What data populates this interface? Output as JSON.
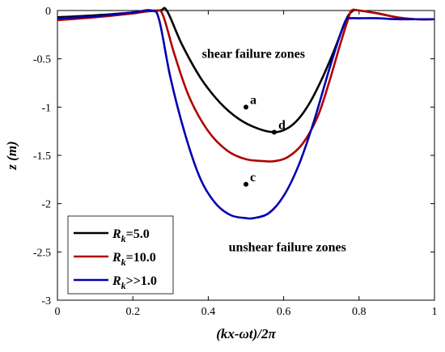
{
  "chart_data": {
    "type": "line",
    "xlabel": "(kx-ωt)/2π",
    "ylabel": "z (m)",
    "xlim": [
      0,
      1
    ],
    "ylim": [
      -3,
      0
    ],
    "xticks": [
      0,
      0.2,
      0.4,
      0.6,
      0.8,
      1
    ],
    "xtick_labels": [
      "0",
      "0.2",
      "0.4",
      "0.6",
      "0.8",
      "1"
    ],
    "yticks": [
      0,
      -0.5,
      -1,
      -1.5,
      -2,
      -2.5,
      -3
    ],
    "ytick_labels": [
      "0",
      "-0.5",
      "-1",
      "-1.5",
      "-2",
      "-2.5",
      "-3"
    ],
    "grid": false,
    "legend_position": "bottom-left",
    "series": [
      {
        "name": "Rk=5.0",
        "legend_main": "R",
        "legend_sub": "k",
        "legend_rest": "=5.0",
        "color": "#000000",
        "x": [
          0,
          0.1,
          0.2,
          0.27,
          0.29,
          0.33,
          0.38,
          0.43,
          0.48,
          0.53,
          0.575,
          0.61,
          0.64,
          0.67,
          0.7,
          0.73,
          0.755,
          0.77,
          0.785,
          0.8,
          0.85,
          0.9,
          0.95,
          1
        ],
        "y": [
          -0.07,
          -0.05,
          -0.02,
          0,
          0,
          -0.35,
          -0.7,
          -0.95,
          -1.12,
          -1.22,
          -1.26,
          -1.22,
          -1.12,
          -0.95,
          -0.72,
          -0.45,
          -0.2,
          -0.06,
          0,
          0,
          -0.03,
          -0.07,
          -0.09,
          -0.09
        ]
      },
      {
        "name": "Rk=10.0",
        "legend_main": "R",
        "legend_sub": "k",
        "legend_rest": "=10.0",
        "color": "#b00000",
        "x": [
          0,
          0.1,
          0.2,
          0.26,
          0.28,
          0.31,
          0.35,
          0.4,
          0.45,
          0.5,
          0.55,
          0.575,
          0.61,
          0.65,
          0.69,
          0.72,
          0.75,
          0.77,
          0.78,
          0.8,
          0.85,
          0.9,
          0.95,
          1
        ],
        "y": [
          -0.1,
          -0.07,
          -0.03,
          0,
          -0.05,
          -0.45,
          -0.9,
          -1.25,
          -1.45,
          -1.54,
          -1.56,
          -1.56,
          -1.52,
          -1.38,
          -1.1,
          -0.75,
          -0.35,
          -0.1,
          0,
          0,
          -0.03,
          -0.07,
          -0.09,
          -0.09
        ]
      },
      {
        "name": "Rk>>1.0",
        "legend_main": "R",
        "legend_sub": "k",
        "legend_rest": ">>1.0",
        "color": "#0000b0",
        "x": [
          0,
          0.1,
          0.2,
          0.25,
          0.27,
          0.3,
          0.34,
          0.38,
          0.42,
          0.46,
          0.5,
          0.52,
          0.56,
          0.6,
          0.64,
          0.68,
          0.72,
          0.75,
          0.765,
          0.775,
          0.8,
          0.85,
          0.9,
          0.95,
          1
        ],
        "y": [
          -0.08,
          -0.06,
          -0.02,
          0,
          -0.1,
          -0.7,
          -1.3,
          -1.75,
          -2.0,
          -2.12,
          -2.15,
          -2.15,
          -2.1,
          -1.92,
          -1.6,
          -1.15,
          -0.62,
          -0.25,
          -0.1,
          -0.08,
          -0.08,
          -0.08,
          -0.09,
          -0.09,
          -0.09
        ]
      }
    ],
    "points": [
      {
        "label": "a",
        "x": 0.5,
        "y": -1.0
      },
      {
        "label": "d",
        "x": 0.575,
        "y": -1.26
      },
      {
        "label": "c",
        "x": 0.5,
        "y": -1.8
      }
    ],
    "annotations": [
      {
        "text": "shear failure zones",
        "x": 0.52,
        "y": -0.45
      },
      {
        "text": "unshear failure zones",
        "x": 0.61,
        "y": -2.45
      }
    ]
  }
}
